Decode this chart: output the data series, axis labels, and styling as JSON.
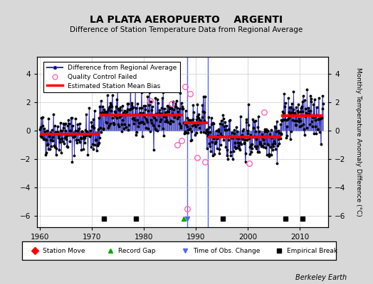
{
  "title": "LA PLATA AEROPUERTO    ARGENTI",
  "subtitle": "Difference of Station Temperature Data from Regional Average",
  "ylabel": "Monthly Temperature Anomaly Difference (°C)",
  "credit": "Berkeley Earth",
  "xlim": [
    1959.5,
    2015.5
  ],
  "ylim": [
    -6.8,
    5.2
  ],
  "yticks": [
    -6,
    -4,
    -2,
    0,
    2,
    4
  ],
  "xticks": [
    1960,
    1970,
    1980,
    1990,
    2000,
    2010
  ],
  "background_color": "#d8d8d8",
  "plot_bg_color": "#ffffff",
  "grid_color": "#cccccc",
  "segments": [
    {
      "x_start": 1960.0,
      "x_end": 1971.5,
      "bias": -0.25
    },
    {
      "x_start": 1971.5,
      "x_end": 1987.5,
      "bias": 1.1
    },
    {
      "x_start": 1987.7,
      "x_end": 1992.3,
      "bias": 0.55
    },
    {
      "x_start": 1992.3,
      "x_end": 2006.5,
      "bias": -0.45
    },
    {
      "x_start": 2006.5,
      "x_end": 2014.5,
      "bias": 1.05
    }
  ],
  "empirical_breaks_x": [
    1972.3,
    1978.5,
    1995.2,
    2007.2,
    2010.5
  ],
  "empirical_breaks_y": -6.2,
  "record_gap_x": 1987.7,
  "record_gap_y": -6.2,
  "time_of_obs_x": 1988.3,
  "time_of_obs_y": -6.2,
  "time_of_obs_line_x": 1988.3,
  "tall_blue_line_x": 1992.3,
  "qc_fail_points": [
    [
      1981.2,
      2.1
    ],
    [
      1985.3,
      1.9
    ],
    [
      1987.2,
      -0.7
    ],
    [
      1988.0,
      3.1
    ],
    [
      1988.9,
      2.6
    ],
    [
      1990.3,
      -1.9
    ],
    [
      1991.8,
      -2.2
    ],
    [
      2000.3,
      -2.3
    ],
    [
      2003.2,
      1.3
    ],
    [
      1986.5,
      -1.0
    ],
    [
      1988.3,
      -5.5
    ]
  ],
  "seed": 42,
  "point_segments": [
    {
      "x_start": 1960.0,
      "x_end": 1971.5,
      "bias": -0.25,
      "n": 138,
      "std": 0.75
    },
    {
      "x_start": 1971.5,
      "x_end": 1987.5,
      "bias": 1.1,
      "n": 192,
      "std": 0.75
    },
    {
      "x_start": 1987.7,
      "x_end": 1992.3,
      "bias": 0.55,
      "n": 55,
      "std": 0.85
    },
    {
      "x_start": 1992.3,
      "x_end": 2006.5,
      "bias": -0.45,
      "n": 170,
      "std": 0.75
    },
    {
      "x_start": 2006.5,
      "x_end": 2014.5,
      "bias": 1.05,
      "n": 97,
      "std": 0.75
    }
  ]
}
